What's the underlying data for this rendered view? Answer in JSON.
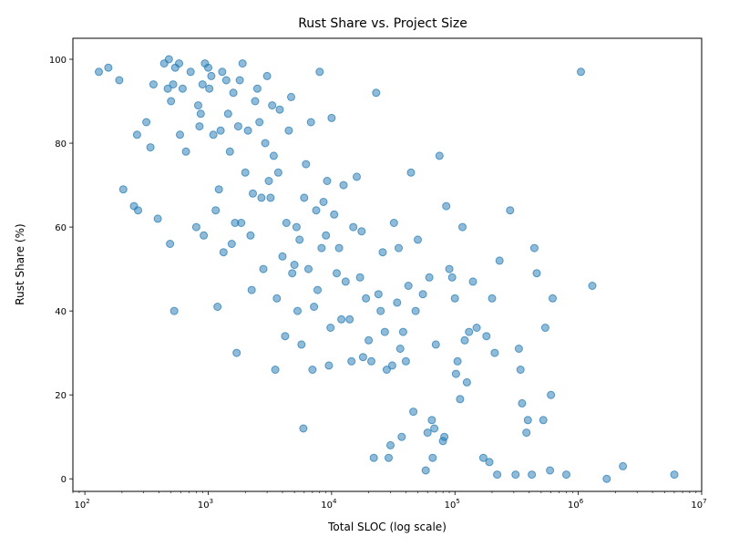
{
  "chart_data": {
    "type": "scatter",
    "title": "Rust Share vs. Project Size",
    "xlabel": "Total SLOC (log scale)",
    "ylabel": "Rust Share (%)",
    "x_scale": "log",
    "xlim": [
      80,
      10000000
    ],
    "ylim": [
      -3,
      105
    ],
    "x_ticks": [
      {
        "value": 100,
        "label": "10",
        "exp": "2"
      },
      {
        "value": 1000,
        "label": "10",
        "exp": "3"
      },
      {
        "value": 10000,
        "label": "10",
        "exp": "4"
      },
      {
        "value": 100000,
        "label": "10",
        "exp": "5"
      },
      {
        "value": 1000000,
        "label": "10",
        "exp": "6"
      },
      {
        "value": 10000000,
        "label": "10",
        "exp": "7"
      }
    ],
    "y_ticks": [
      {
        "value": 0,
        "label": "0"
      },
      {
        "value": 20,
        "label": "20"
      },
      {
        "value": 40,
        "label": "40"
      },
      {
        "value": 60,
        "label": "60"
      },
      {
        "value": 80,
        "label": "80"
      },
      {
        "value": 100,
        "label": "100"
      }
    ],
    "grid": false,
    "legend": "none",
    "colors": {
      "point": "#1f77b4"
    },
    "series": [
      {
        "points": [
          [
            130,
            97
          ],
          [
            155,
            98
          ],
          [
            190,
            95
          ],
          [
            205,
            69
          ],
          [
            250,
            65
          ],
          [
            265,
            82
          ],
          [
            270,
            64
          ],
          [
            315,
            85
          ],
          [
            340,
            79
          ],
          [
            360,
            94
          ],
          [
            390,
            62
          ],
          [
            440,
            99
          ],
          [
            470,
            93
          ],
          [
            480,
            100
          ],
          [
            490,
            56
          ],
          [
            500,
            90
          ],
          [
            520,
            94
          ],
          [
            530,
            40
          ],
          [
            540,
            98
          ],
          [
            580,
            99
          ],
          [
            590,
            82
          ],
          [
            620,
            93
          ],
          [
            660,
            78
          ],
          [
            720,
            97
          ],
          [
            800,
            60
          ],
          [
            830,
            89
          ],
          [
            850,
            84
          ],
          [
            870,
            87
          ],
          [
            900,
            94
          ],
          [
            920,
            58
          ],
          [
            940,
            99
          ],
          [
            1000,
            98
          ],
          [
            1020,
            93
          ],
          [
            1060,
            96
          ],
          [
            1100,
            82
          ],
          [
            1150,
            64
          ],
          [
            1190,
            41
          ],
          [
            1220,
            69
          ],
          [
            1260,
            83
          ],
          [
            1300,
            97
          ],
          [
            1330,
            54
          ],
          [
            1400,
            95
          ],
          [
            1450,
            87
          ],
          [
            1500,
            78
          ],
          [
            1550,
            56
          ],
          [
            1600,
            92
          ],
          [
            1650,
            61
          ],
          [
            1700,
            30
          ],
          [
            1750,
            84
          ],
          [
            1800,
            95
          ],
          [
            1850,
            61
          ],
          [
            1900,
            99
          ],
          [
            2000,
            73
          ],
          [
            2100,
            83
          ],
          [
            2200,
            58
          ],
          [
            2250,
            45
          ],
          [
            2300,
            68
          ],
          [
            2400,
            90
          ],
          [
            2500,
            93
          ],
          [
            2600,
            85
          ],
          [
            2700,
            67
          ],
          [
            2800,
            50
          ],
          [
            2900,
            80
          ],
          [
            3000,
            96
          ],
          [
            3100,
            71
          ],
          [
            3200,
            67
          ],
          [
            3300,
            89
          ],
          [
            3400,
            77
          ],
          [
            3500,
            26
          ],
          [
            3600,
            43
          ],
          [
            3700,
            73
          ],
          [
            3800,
            88
          ],
          [
            4000,
            53
          ],
          [
            4200,
            34
          ],
          [
            4300,
            61
          ],
          [
            4500,
            83
          ],
          [
            4700,
            91
          ],
          [
            4800,
            49
          ],
          [
            5000,
            51
          ],
          [
            5200,
            60
          ],
          [
            5300,
            40
          ],
          [
            5500,
            57
          ],
          [
            5700,
            32
          ],
          [
            5900,
            12
          ],
          [
            6000,
            67
          ],
          [
            6200,
            75
          ],
          [
            6500,
            50
          ],
          [
            6800,
            85
          ],
          [
            7000,
            26
          ],
          [
            7200,
            41
          ],
          [
            7500,
            64
          ],
          [
            7700,
            45
          ],
          [
            8000,
            97
          ],
          [
            8300,
            55
          ],
          [
            8600,
            66
          ],
          [
            9000,
            58
          ],
          [
            9200,
            71
          ],
          [
            9500,
            27
          ],
          [
            9800,
            36
          ],
          [
            10000,
            86
          ],
          [
            10500,
            63
          ],
          [
            11000,
            49
          ],
          [
            11500,
            55
          ],
          [
            12000,
            38
          ],
          [
            12500,
            70
          ],
          [
            13000,
            47
          ],
          [
            14000,
            38
          ],
          [
            14500,
            28
          ],
          [
            15000,
            60
          ],
          [
            16000,
            72
          ],
          [
            17000,
            48
          ],
          [
            17500,
            59
          ],
          [
            18000,
            29
          ],
          [
            19000,
            43
          ],
          [
            20000,
            33
          ],
          [
            21000,
            28
          ],
          [
            22000,
            5
          ],
          [
            23000,
            92
          ],
          [
            24000,
            44
          ],
          [
            25000,
            40
          ],
          [
            26000,
            54
          ],
          [
            27000,
            35
          ],
          [
            28000,
            26
          ],
          [
            29000,
            5
          ],
          [
            30000,
            8
          ],
          [
            31000,
            27
          ],
          [
            32000,
            61
          ],
          [
            34000,
            42
          ],
          [
            35000,
            55
          ],
          [
            36000,
            31
          ],
          [
            37000,
            10
          ],
          [
            38000,
            35
          ],
          [
            40000,
            28
          ],
          [
            42000,
            46
          ],
          [
            44000,
            73
          ],
          [
            46000,
            16
          ],
          [
            48000,
            40
          ],
          [
            50000,
            57
          ],
          [
            55000,
            44
          ],
          [
            58000,
            2
          ],
          [
            60000,
            11
          ],
          [
            62000,
            48
          ],
          [
            65000,
            14
          ],
          [
            66000,
            5
          ],
          [
            68000,
            12
          ],
          [
            70000,
            32
          ],
          [
            75000,
            77
          ],
          [
            80000,
            9
          ],
          [
            82000,
            10
          ],
          [
            85000,
            65
          ],
          [
            90000,
            50
          ],
          [
            95000,
            48
          ],
          [
            100000,
            43
          ],
          [
            102000,
            25
          ],
          [
            105000,
            28
          ],
          [
            110000,
            19
          ],
          [
            115000,
            60
          ],
          [
            120000,
            33
          ],
          [
            125000,
            23
          ],
          [
            130000,
            35
          ],
          [
            140000,
            47
          ],
          [
            150000,
            36
          ],
          [
            170000,
            5
          ],
          [
            180000,
            34
          ],
          [
            190000,
            4
          ],
          [
            200000,
            43
          ],
          [
            210000,
            30
          ],
          [
            220000,
            1
          ],
          [
            230000,
            52
          ],
          [
            280000,
            64
          ],
          [
            310000,
            1
          ],
          [
            330000,
            31
          ],
          [
            340000,
            26
          ],
          [
            350000,
            18
          ],
          [
            380000,
            11
          ],
          [
            390000,
            14
          ],
          [
            420000,
            1
          ],
          [
            440000,
            55
          ],
          [
            460000,
            49
          ],
          [
            520000,
            14
          ],
          [
            540000,
            36
          ],
          [
            590000,
            2
          ],
          [
            600000,
            20
          ],
          [
            620000,
            43
          ],
          [
            800000,
            1
          ],
          [
            1050000,
            97
          ],
          [
            1300000,
            46
          ],
          [
            1700000,
            0
          ],
          [
            2300000,
            3
          ],
          [
            6000000,
            1
          ]
        ]
      }
    ]
  }
}
